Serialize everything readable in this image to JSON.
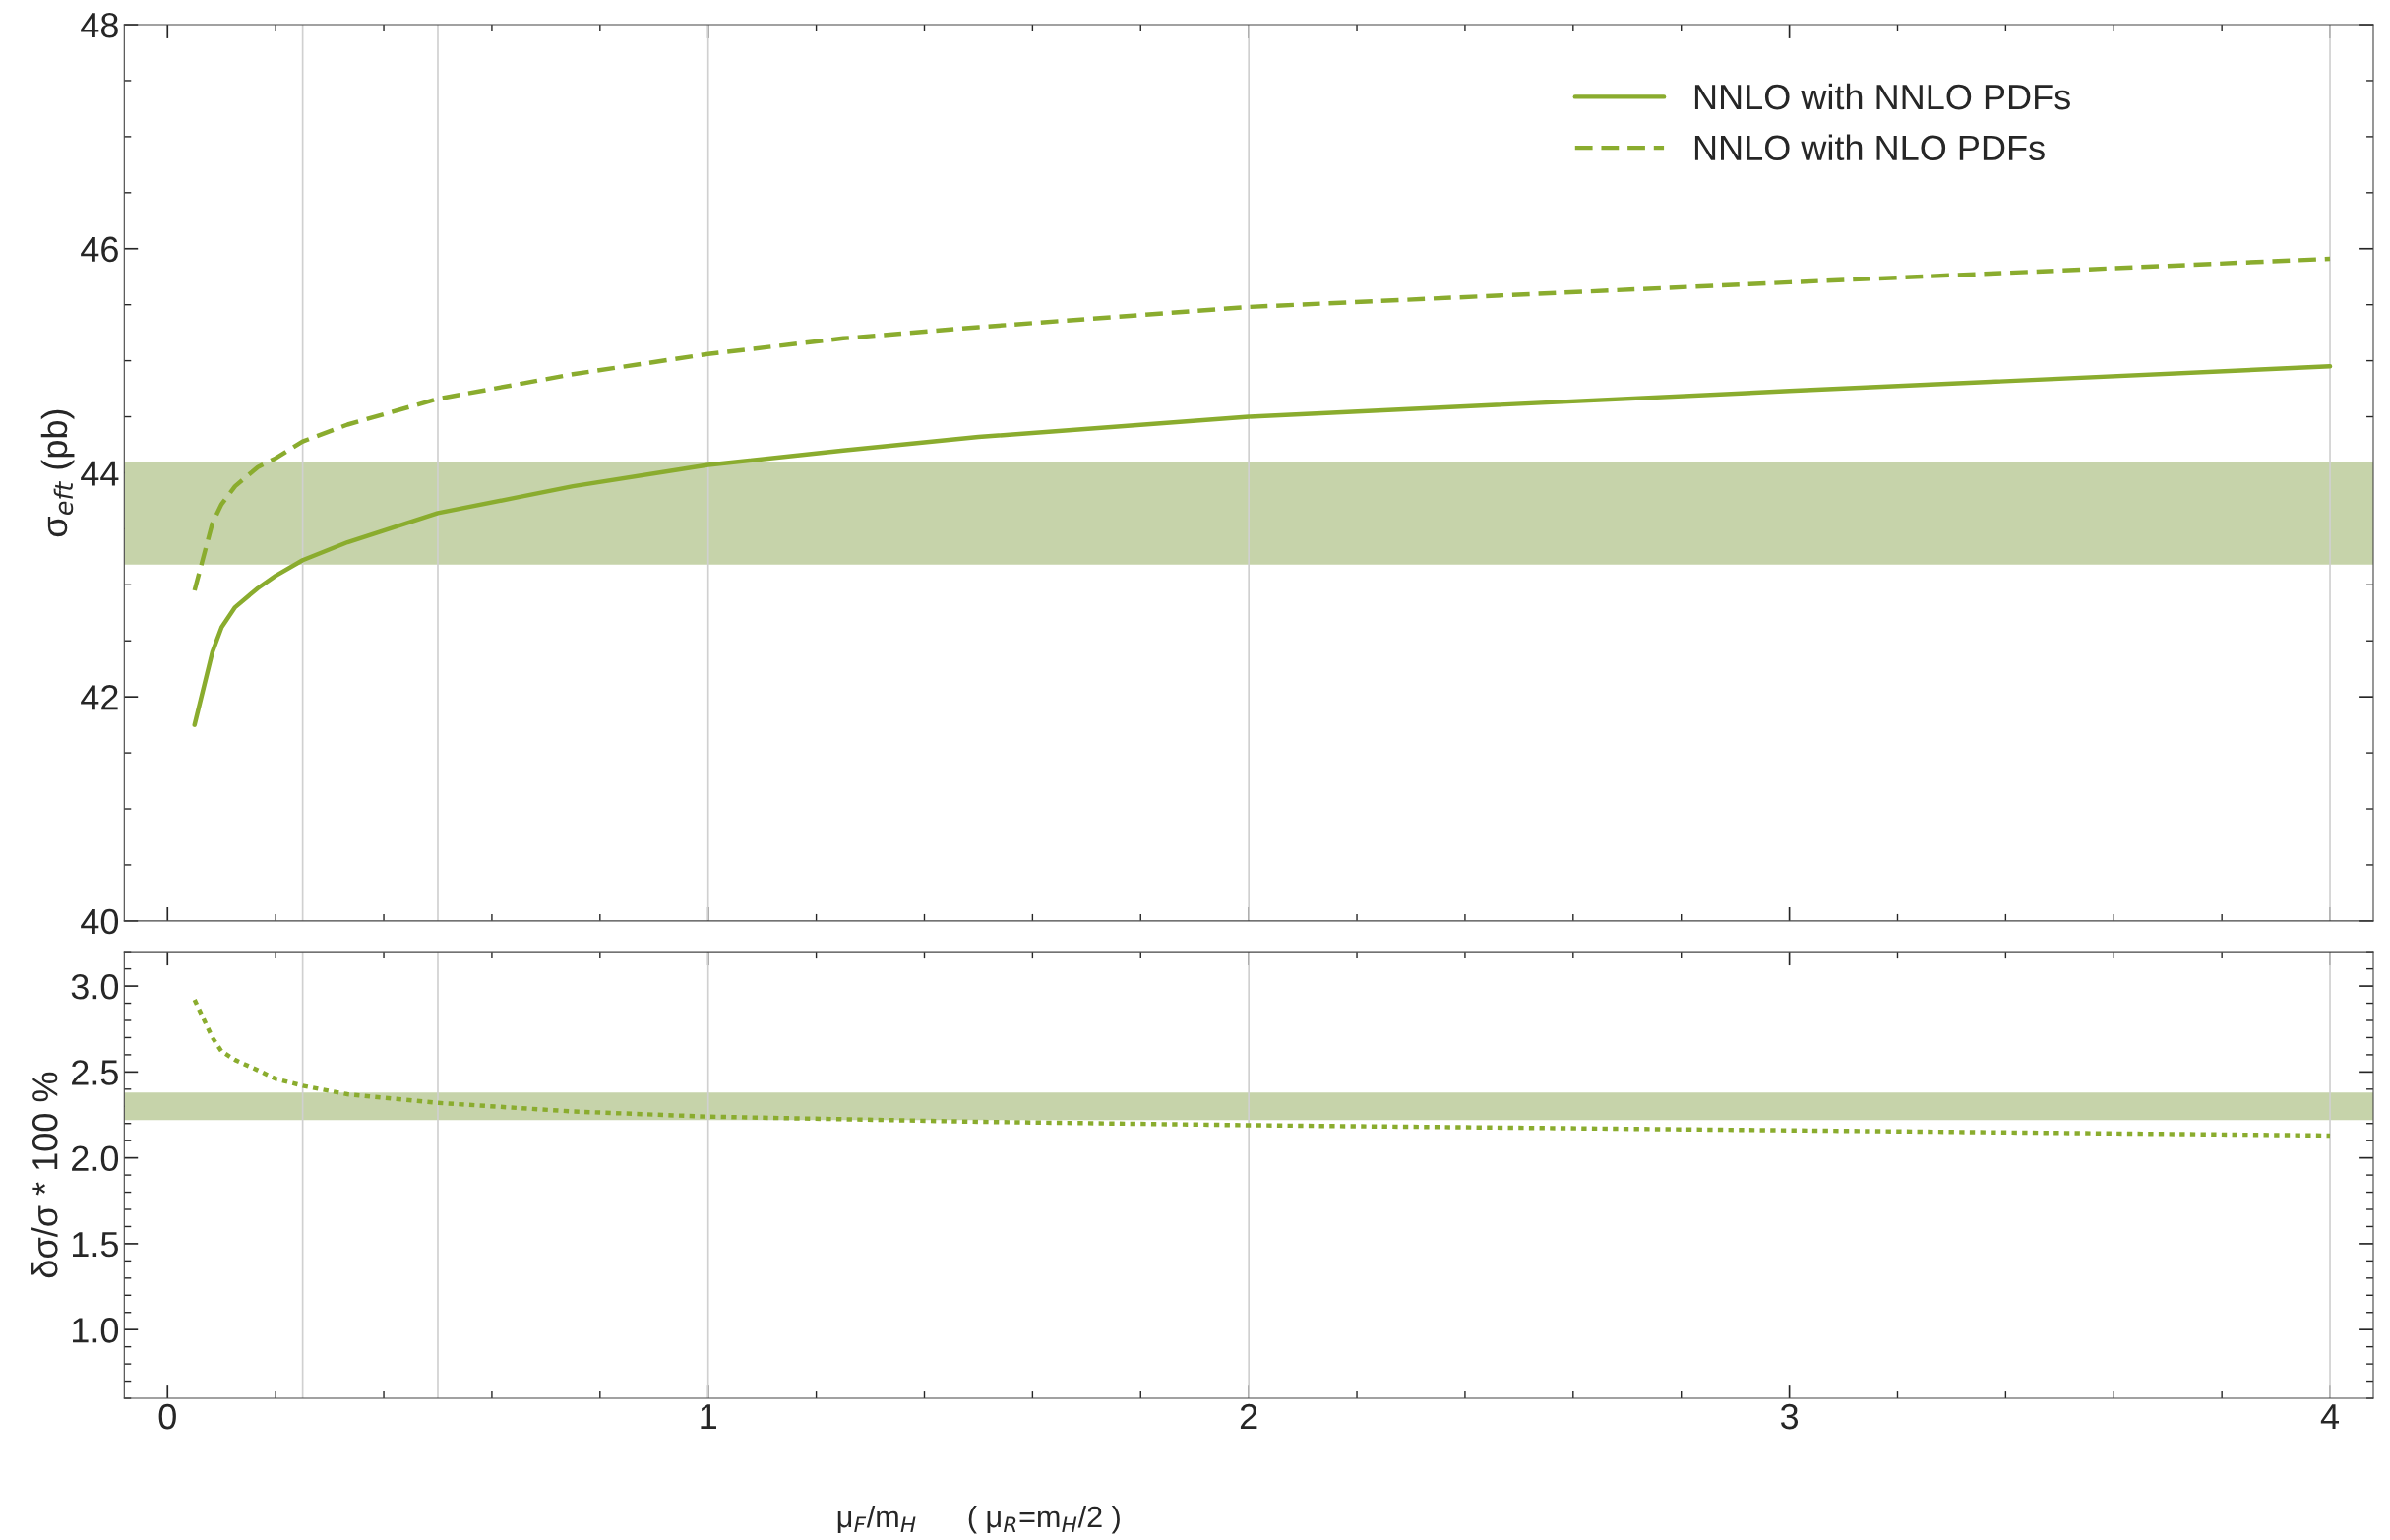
{
  "chart_data": [
    {
      "type": "line",
      "ylabel": "σ$_{eft}$ (pb)",
      "xlim": [
        -0.08,
        4.08
      ],
      "xticks": [
        0,
        1,
        2,
        3,
        4
      ],
      "ylim": [
        40,
        48
      ],
      "yticks": [
        40,
        42,
        44,
        46,
        48
      ],
      "tick_labels": "y",
      "legend": "top right",
      "grid": false,
      "series": [
        {
          "name": "NNLO with NNLO PDFs",
          "color": "#8aac2e",
          "line_style": "solid",
          "x": [
            0.05,
            0.083,
            0.1,
            0.125,
            0.167,
            0.2,
            0.25,
            0.333,
            0.5,
            0.75,
            1.0,
            1.25,
            1.5,
            2.0,
            3.0,
            4.0
          ],
          "values": [
            41.75,
            42.4,
            42.62,
            42.8,
            42.97,
            43.08,
            43.22,
            43.38,
            43.64,
            43.88,
            44.07,
            44.2,
            44.32,
            44.5,
            44.73,
            44.95
          ]
        },
        {
          "name": "NNLO with NLO PDFs",
          "color": "#8aac2e",
          "line_style": "dashed",
          "x": [
            0.05,
            0.083,
            0.1,
            0.125,
            0.167,
            0.2,
            0.25,
            0.333,
            0.5,
            0.75,
            1.0,
            1.25,
            1.5,
            2.0,
            3.0,
            4.0
          ],
          "values": [
            42.95,
            43.55,
            43.72,
            43.88,
            44.05,
            44.13,
            44.28,
            44.43,
            44.66,
            44.88,
            45.06,
            45.2,
            45.3,
            45.48,
            45.7,
            45.91
          ]
        }
      ],
      "bands": [
        {
          "axis": "y",
          "from": 43.18,
          "to": 44.1,
          "color": "#c6d3aa"
        }
      ],
      "ref_lines": [
        {
          "axis": "x",
          "value": 0.25,
          "color": "#d0d0d0"
        },
        {
          "axis": "x",
          "value": 0.5,
          "color": "#d0d0d0"
        },
        {
          "axis": "x",
          "value": 1,
          "color": "#d0d0d0"
        },
        {
          "axis": "x",
          "value": 2,
          "color": "#d0d0d0"
        },
        {
          "axis": "x",
          "value": 4,
          "color": "#d0d0d0"
        }
      ]
    },
    {
      "type": "line",
      "xlabel": "μ$_{F}$/m$_{H}$      ( μ$_{R}$=m$_{H}$/2 )",
      "ylabel": "δσ/σ * 100 %",
      "xlim": [
        -0.08,
        4.08
      ],
      "xticks": [
        0,
        1,
        2,
        3,
        4
      ],
      "ylim": [
        0.6,
        3.2
      ],
      "yticks": [
        {
          "value": 1,
          "label": "1.0"
        },
        1.5,
        {
          "value": 2,
          "label": "2.0"
        },
        2.5,
        {
          "value": 3,
          "label": "3.0"
        }
      ],
      "grid": false,
      "series": [
        {
          "color": "#8aac2e",
          "line_style": "dotted",
          "x": [
            0.05,
            0.083,
            0.1,
            0.125,
            0.167,
            0.2,
            0.25,
            0.333,
            0.5,
            0.75,
            1.0,
            1.5,
            2.0,
            3.0,
            4.0
          ],
          "values": [
            2.92,
            2.7,
            2.62,
            2.57,
            2.51,
            2.46,
            2.42,
            2.37,
            2.32,
            2.27,
            2.24,
            2.21,
            2.19,
            2.16,
            2.13
          ]
        }
      ],
      "bands": [
        {
          "axis": "y",
          "from": 2.22,
          "to": 2.38,
          "color": "#c6d3aa"
        }
      ],
      "ref_lines": [
        {
          "axis": "x",
          "value": 0.25,
          "color": "#d0d0d0"
        },
        {
          "axis": "x",
          "value": 0.5,
          "color": "#d0d0d0"
        },
        {
          "axis": "x",
          "value": 1,
          "color": "#d0d0d0"
        },
        {
          "axis": "x",
          "value": 2,
          "color": "#d0d0d0"
        },
        {
          "axis": "x",
          "value": 4,
          "color": "#d0d0d0"
        }
      ]
    }
  ]
}
